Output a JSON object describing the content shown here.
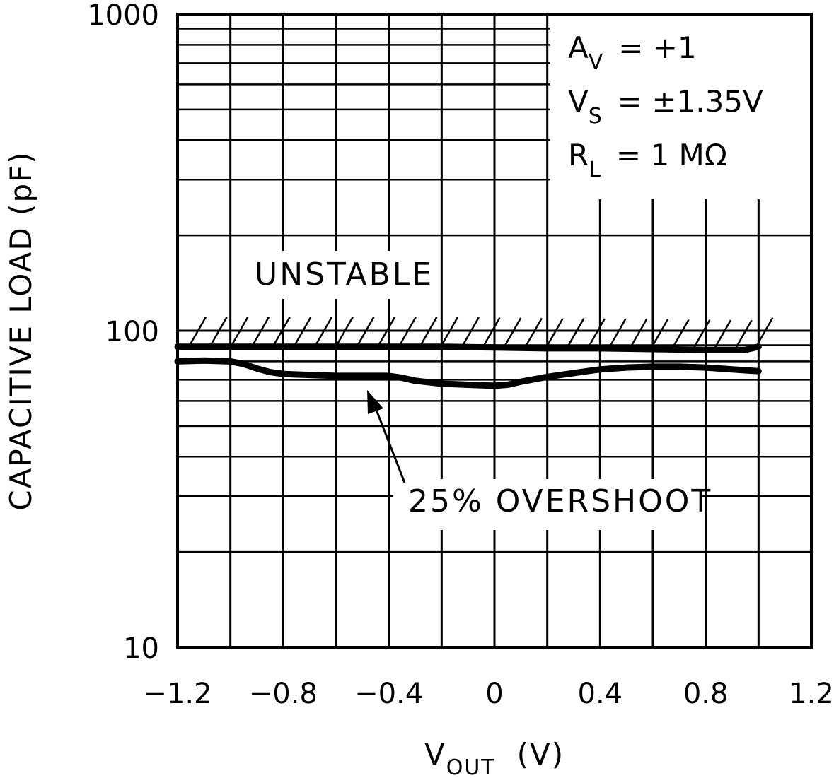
{
  "chart_data": {
    "type": "line",
    "xlabel": "V",
    "xlabel_sub": "OUT",
    "xlabel_unit": "(V)",
    "ylabel": "CAPACITIVE LOAD (pF)",
    "xlim": [
      -1.2,
      1.2
    ],
    "ylim": [
      10,
      1000
    ],
    "yscale": "log",
    "grid": true,
    "x_ticks": [
      -1.2,
      -0.8,
      -0.4,
      0,
      0.4,
      0.8,
      1.2
    ],
    "x_tick_labels": [
      "−1.2",
      "−0.8",
      "−0.4",
      "0",
      "0.4",
      "0.8",
      "1.2"
    ],
    "y_tick_labels": [
      {
        "value": 1000,
        "label": "1000"
      },
      {
        "value": 100,
        "label": "100"
      },
      {
        "value": 10,
        "label": "10"
      }
    ],
    "conditions": [
      {
        "sym": "A",
        "sub": "V",
        "val": "=  +1"
      },
      {
        "sym": "V",
        "sub": "S",
        "val": "=  ±1.35V"
      },
      {
        "sym": "R",
        "sub": "L",
        "val": "=  1 MΩ"
      }
    ],
    "annotations": {
      "unstable": "UNSTABLE",
      "overshoot": "25% OVERSHOOT"
    },
    "series": [
      {
        "role": "stability-limit",
        "x": [
          -1.2,
          -1.0,
          -0.8,
          -0.6,
          -0.4,
          -0.2,
          0.0,
          0.2,
          0.4,
          0.6,
          0.8,
          0.95,
          1.0
        ],
        "y": [
          89,
          89,
          89,
          89,
          89,
          89,
          88.5,
          88,
          88,
          87.5,
          87,
          87,
          89
        ]
      },
      {
        "role": "25-percent-overshoot",
        "x": [
          -1.2,
          -1.1,
          -1.0,
          -0.95,
          -0.9,
          -0.85,
          -0.8,
          -0.7,
          -0.6,
          -0.5,
          -0.4,
          -0.35,
          -0.3,
          -0.2,
          -0.1,
          0.0,
          0.05,
          0.1,
          0.2,
          0.3,
          0.4,
          0.5,
          0.6,
          0.7,
          0.8,
          0.9,
          1.0
        ],
        "y": [
          80,
          80.5,
          80,
          78.5,
          76,
          74,
          73,
          72.5,
          72,
          72,
          72,
          71,
          69.5,
          68,
          67.5,
          67,
          67.5,
          69,
          71.5,
          73.5,
          75.5,
          76.5,
          77,
          77,
          76.5,
          75.5,
          74.5
        ]
      }
    ]
  }
}
